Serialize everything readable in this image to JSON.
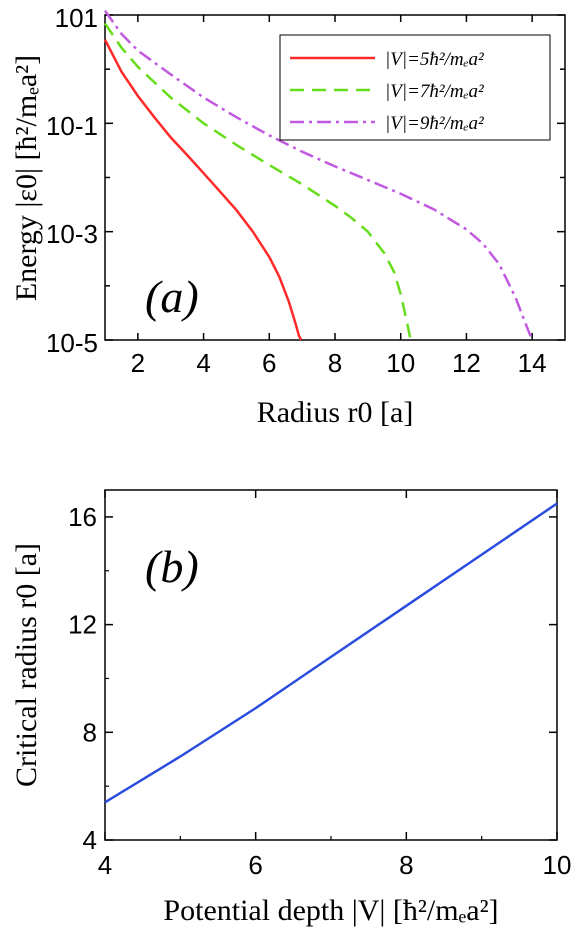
{
  "chart_data": [
    {
      "panel": "(a)",
      "type": "line",
      "xlabel": "Radius r0 [a]",
      "ylabel": "Energy |ε0| [ħ²/mₑa²]",
      "xscale": "linear",
      "yscale": "log",
      "xlim": [
        1,
        15
      ],
      "ylim": [
        1e-05,
        10
      ],
      "xticks": [
        "2",
        "4",
        "6",
        "8",
        "10",
        "12",
        "14"
      ],
      "yticks": [
        "10-5",
        "10-3",
        "10-1",
        "101"
      ],
      "legend_position": "top-right",
      "series": [
        {
          "name": "|V|=5ħ²/mₑa²",
          "color": "#ff2a2a",
          "style": "solid",
          "x": [
            1.0,
            1.5,
            2.0,
            2.5,
            3.0,
            3.5,
            4.0,
            4.5,
            5.0,
            5.5,
            6.0,
            6.3,
            6.6,
            6.8,
            6.9,
            6.97
          ],
          "y": [
            3.5,
            0.9,
            0.32,
            0.13,
            0.055,
            0.026,
            0.012,
            0.0055,
            0.0025,
            0.001,
            0.00034,
            0.00015,
            5e-05,
            2e-05,
            1.2e-05,
            1e-05
          ]
        },
        {
          "name": "|V|=7ħ²/mₑa²",
          "color": "#66dd1a",
          "style": "dashed",
          "x": [
            1.0,
            1.5,
            2.0,
            3.0,
            4.0,
            5.0,
            6.0,
            7.0,
            8.0,
            8.5,
            9.0,
            9.5,
            9.8,
            10.0,
            10.2,
            10.3
          ],
          "y": [
            7.0,
            2.5,
            1.1,
            0.3,
            0.1,
            0.04,
            0.017,
            0.0075,
            0.003,
            0.0018,
            0.001,
            0.0004,
            0.00018,
            7e-05,
            2e-05,
            1e-05
          ]
        },
        {
          "name": "|V|=9ħ²/mₑa²",
          "color": "#c15ae0",
          "style": "dashdot",
          "x": [
            1.0,
            1.5,
            2.0,
            3.0,
            4.0,
            5.0,
            6.0,
            7.0,
            8.0,
            9.0,
            10.0,
            11.0,
            12.0,
            12.5,
            13.0,
            13.5,
            13.8,
            14.0
          ],
          "y": [
            12.0,
            4.5,
            2.2,
            0.8,
            0.3,
            0.13,
            0.06,
            0.03,
            0.016,
            0.009,
            0.005,
            0.0026,
            0.0011,
            0.0006,
            0.00025,
            6e-05,
            2e-05,
            1e-05
          ]
        }
      ]
    },
    {
      "panel": "(b)",
      "type": "line",
      "xlabel": "Potential depth |V| [ħ²/mₑa²]",
      "ylabel": "Critical radius r0 [a]",
      "xlim": [
        4,
        10
      ],
      "ylim": [
        4,
        17
      ],
      "xticks": [
        "4",
        "6",
        "8",
        "10"
      ],
      "yticks": [
        "4",
        "8",
        "12",
        "16"
      ],
      "series": [
        {
          "color": "#2a4de0",
          "style": "solid",
          "x": [
            4.0,
            5.0,
            6.0,
            7.0,
            8.0,
            9.0,
            10.0
          ],
          "y": [
            5.4,
            7.1,
            8.9,
            10.8,
            12.7,
            14.6,
            16.5
          ]
        }
      ]
    }
  ]
}
